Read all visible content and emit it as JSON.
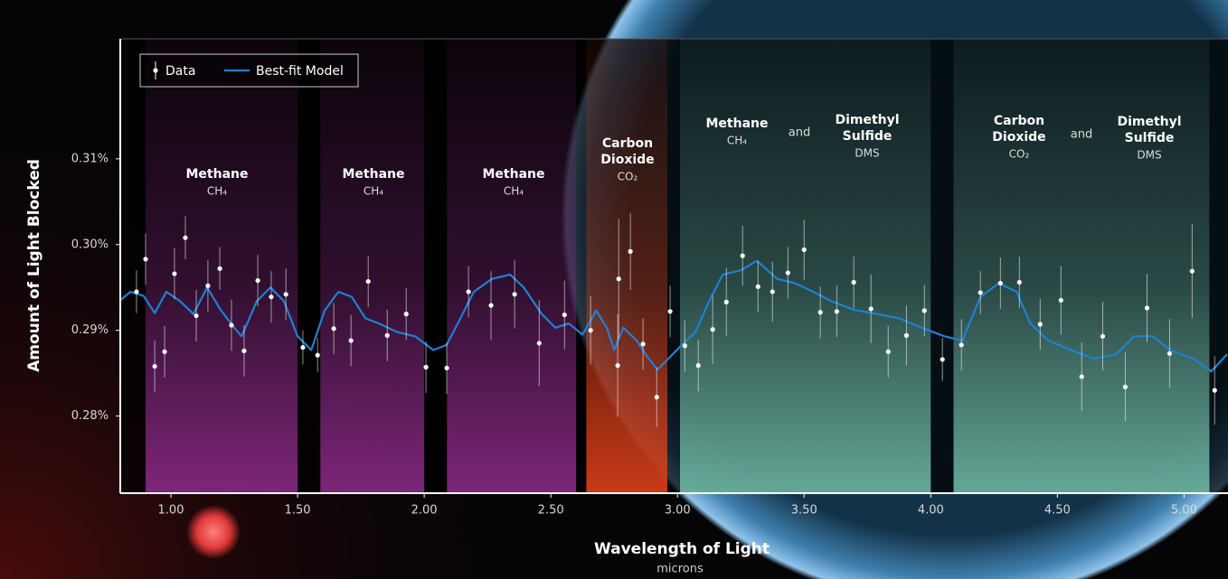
{
  "chart_data": {
    "type": "spectrum",
    "ylabel": "Amount of Light Blocked",
    "xlabel": "Wavelength of Light",
    "x_unit": "microns",
    "xlim": [
      0.8,
      5.17
    ],
    "ylim": [
      0.271,
      0.324
    ],
    "xticks": [
      {
        "value": 1,
        "label": "1.00"
      },
      {
        "value": 1.5,
        "label": "1.50"
      },
      {
        "value": 2,
        "label": "2.00"
      },
      {
        "value": 2.5,
        "label": "2.50"
      },
      {
        "value": 3,
        "label": "3.00"
      },
      {
        "value": 3.5,
        "label": "3.50"
      },
      {
        "value": 4,
        "label": "4.00"
      },
      {
        "value": 4.5,
        "label": "4.50"
      },
      {
        "value": 5,
        "label": "5.00"
      }
    ],
    "yticks": [
      {
        "value": 0.28,
        "label": "0.28%"
      },
      {
        "value": 0.29,
        "label": "0.29%"
      },
      {
        "value": 0.3,
        "label": "0.30%"
      },
      {
        "value": 0.31,
        "label": "0.31%"
      }
    ],
    "bands": [
      {
        "start": 0.9,
        "end": 1.5,
        "color": "#8a2a86",
        "labels": [
          {
            "name_lines": [
              "Methane"
            ],
            "formula": "CH₄"
          }
        ]
      },
      {
        "start": 1.59,
        "end": 2.0,
        "color": "#8a2a86",
        "labels": [
          {
            "name_lines": [
              "Methane"
            ],
            "formula": "CH₄"
          }
        ]
      },
      {
        "start": 2.09,
        "end": 2.6,
        "color": "#8a2a86",
        "labels": [
          {
            "name_lines": [
              "Methane"
            ],
            "formula": "CH₄"
          }
        ]
      },
      {
        "start": 2.64,
        "end": 2.96,
        "color": "#e0401a",
        "labels": [
          {
            "name_lines": [
              "Carbon",
              "Dioxide"
            ],
            "formula": "CO₂"
          }
        ]
      },
      {
        "start": 3.01,
        "end": 4.0,
        "color": "#6fb8a4",
        "joiner": "and",
        "labels": [
          {
            "name_lines": [
              "Methane"
            ],
            "formula": "CH₄"
          },
          {
            "name_lines": [
              "Dimethyl",
              "Sulfide"
            ],
            "formula": "DMS"
          }
        ]
      },
      {
        "start": 4.09,
        "end": 5.1,
        "color": "#6fb8a4",
        "joiner": "and",
        "labels": [
          {
            "name_lines": [
              "Carbon",
              "Dioxide"
            ],
            "formula": "CO₂"
          },
          {
            "name_lines": [
              "Dimethyl",
              "Sulfide"
            ],
            "formula": "DMS"
          }
        ]
      }
    ],
    "series": [
      {
        "name": "Data",
        "type": "errorbar",
        "color": "#ffffff",
        "x": [
          0.864,
          0.9,
          0.936,
          0.975,
          1.014,
          1.057,
          1.1,
          1.146,
          1.193,
          1.239,
          1.289,
          1.343,
          1.396,
          1.454,
          1.521,
          1.579,
          1.643,
          1.711,
          1.779,
          1.854,
          1.929,
          2.007,
          2.089,
          2.175,
          2.264,
          2.357,
          2.454,
          2.554,
          2.657,
          2.764,
          2.768,
          2.814,
          2.864,
          2.918,
          2.971,
          3.029,
          3.082,
          3.139,
          3.193,
          3.257,
          3.318,
          3.375,
          3.436,
          3.5,
          3.564,
          3.629,
          3.696,
          3.764,
          3.832,
          3.904,
          3.975,
          4.046,
          4.121,
          4.196,
          4.275,
          4.35,
          4.432,
          4.514,
          4.596,
          4.679,
          4.768,
          4.854,
          4.943,
          5.032,
          5.121
        ],
        "values": [
          0.2945,
          0.2983,
          0.2858,
          0.2875,
          0.2966,
          0.3008,
          0.2917,
          0.2952,
          0.2972,
          0.2906,
          0.2876,
          0.2958,
          0.2939,
          0.2942,
          0.288,
          0.2871,
          0.2902,
          0.2888,
          0.2957,
          0.2894,
          0.2919,
          0.2857,
          0.2856,
          0.2945,
          0.2929,
          0.2942,
          0.2885,
          0.2918,
          0.29,
          0.2859,
          0.296,
          0.2992,
          0.2884,
          0.2822,
          0.2922,
          0.2882,
          0.2859,
          0.2901,
          0.2933,
          0.2987,
          0.2951,
          0.2945,
          0.2967,
          0.2994,
          0.2921,
          0.2922,
          0.2956,
          0.2925,
          0.2875,
          0.2894,
          0.2923,
          0.2866,
          0.2883,
          0.2944,
          0.2955,
          0.2956,
          0.2907,
          0.2935,
          0.2846,
          0.2893,
          0.2834,
          0.2926,
          0.2873,
          0.2969,
          0.283
        ],
        "errors": [
          0.0025,
          0.003,
          0.003,
          0.003,
          0.003,
          0.0025,
          0.003,
          0.003,
          0.0025,
          0.003,
          0.003,
          0.003,
          0.003,
          0.003,
          0.002,
          0.002,
          0.003,
          0.003,
          0.003,
          0.003,
          0.003,
          0.003,
          0.003,
          0.003,
          0.004,
          0.004,
          0.005,
          0.004,
          0.004,
          0.006,
          0.007,
          0.0045,
          0.003,
          0.0035,
          0.003,
          0.003,
          0.003,
          0.004,
          0.004,
          0.0035,
          0.003,
          0.0035,
          0.003,
          0.0035,
          0.003,
          0.003,
          0.003,
          0.004,
          0.003,
          0.0035,
          0.003,
          0.0025,
          0.003,
          0.0025,
          0.003,
          0.003,
          0.003,
          0.004,
          0.004,
          0.004,
          0.004,
          0.004,
          0.004,
          0.0055,
          0.004
        ]
      },
      {
        "name": "Best-fit Model",
        "type": "line",
        "color": "#1f80d4",
        "x": [
          0.8,
          0.84,
          0.893,
          0.936,
          0.982,
          1.036,
          1.089,
          1.143,
          1.196,
          1.25,
          1.279,
          1.339,
          1.393,
          1.446,
          1.5,
          1.554,
          1.607,
          1.661,
          1.714,
          1.768,
          1.821,
          1.893,
          1.964,
          2.036,
          2.089,
          2.143,
          2.196,
          2.268,
          2.339,
          2.393,
          2.464,
          2.518,
          2.571,
          2.625,
          2.679,
          2.721,
          2.75,
          2.786,
          2.839,
          2.886,
          2.921,
          2.964,
          3.018,
          3.071,
          3.125,
          3.179,
          3.25,
          3.314,
          3.393,
          3.464,
          3.536,
          3.607,
          3.696,
          3.786,
          3.875,
          3.964,
          4.054,
          4.125,
          4.196,
          4.268,
          4.339,
          4.393,
          4.464,
          4.554,
          4.643,
          4.732,
          4.804,
          4.875,
          4.946,
          5.036,
          5.107,
          5.17
        ],
        "values": [
          0.2935,
          0.2945,
          0.294,
          0.292,
          0.2945,
          0.2934,
          0.2919,
          0.295,
          0.2924,
          0.2903,
          0.2893,
          0.2934,
          0.295,
          0.2934,
          0.2893,
          0.2877,
          0.2923,
          0.2945,
          0.2939,
          0.2914,
          0.2908,
          0.2898,
          0.2893,
          0.2877,
          0.2883,
          0.2914,
          0.2945,
          0.296,
          0.2965,
          0.295,
          0.2919,
          0.2903,
          0.2908,
          0.2895,
          0.2923,
          0.2903,
          0.2877,
          0.2903,
          0.2888,
          0.2867,
          0.2854,
          0.2867,
          0.2883,
          0.2898,
          0.2934,
          0.2965,
          0.297,
          0.2981,
          0.296,
          0.2955,
          0.2945,
          0.2934,
          0.2924,
          0.2919,
          0.2914,
          0.2903,
          0.2893,
          0.2888,
          0.2939,
          0.2955,
          0.2945,
          0.2908,
          0.2888,
          0.2877,
          0.2867,
          0.2872,
          0.2893,
          0.2893,
          0.2877,
          0.2867,
          0.2852,
          0.2872
        ]
      }
    ]
  }
}
